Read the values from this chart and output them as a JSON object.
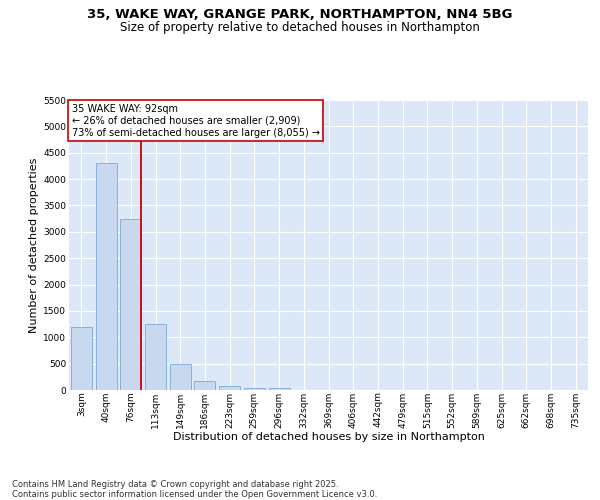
{
  "title_line1": "35, WAKE WAY, GRANGE PARK, NORTHAMPTON, NN4 5BG",
  "title_line2": "Size of property relative to detached houses in Northampton",
  "xlabel": "Distribution of detached houses by size in Northampton",
  "ylabel": "Number of detached properties",
  "categories": [
    "3sqm",
    "40sqm",
    "76sqm",
    "113sqm",
    "149sqm",
    "186sqm",
    "223sqm",
    "259sqm",
    "296sqm",
    "332sqm",
    "369sqm",
    "406sqm",
    "442sqm",
    "479sqm",
    "515sqm",
    "552sqm",
    "589sqm",
    "625sqm",
    "662sqm",
    "698sqm",
    "735sqm"
  ],
  "values": [
    1200,
    4300,
    3250,
    1250,
    490,
    175,
    80,
    45,
    35,
    0,
    0,
    0,
    0,
    0,
    0,
    0,
    0,
    0,
    0,
    0,
    0
  ],
  "bar_color": "#c8d8ee",
  "bar_edge_color": "#7baad4",
  "vline_color": "#cc0000",
  "vline_idx": 2,
  "annotation_text": "35 WAKE WAY: 92sqm\n← 26% of detached houses are smaller (2,909)\n73% of semi-detached houses are larger (8,055) →",
  "ylim": [
    0,
    5500
  ],
  "yticks": [
    0,
    500,
    1000,
    1500,
    2000,
    2500,
    3000,
    3500,
    4000,
    4500,
    5000,
    5500
  ],
  "plot_bg": "#dce8f8",
  "fig_bg": "#ffffff",
  "grid_color": "#ffffff",
  "footer_line1": "Contains HM Land Registry data © Crown copyright and database right 2025.",
  "footer_line2": "Contains public sector information licensed under the Open Government Licence v3.0.",
  "title_fontsize": 9.5,
  "subtitle_fontsize": 8.5,
  "axis_label_fontsize": 8,
  "tick_fontsize": 6.5,
  "annot_fontsize": 7,
  "footer_fontsize": 6
}
